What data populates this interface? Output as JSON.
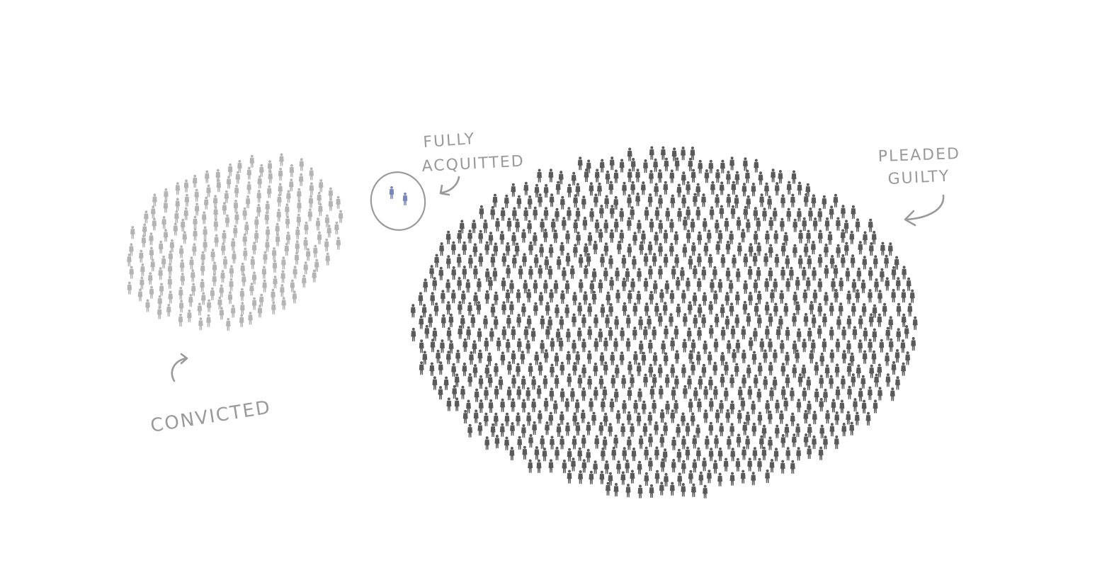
{
  "groups": {
    "convicted": {
      "label": "CONVICTED",
      "color": "#b4b4b4"
    },
    "fully_acquitted": {
      "label_line1": "FULLY",
      "label_line2": "ACQUITTED",
      "color": "#7b86b8"
    },
    "pleaded_guilty": {
      "label_line1": "PLEADED",
      "label_line2": "GUILTY",
      "color": "#5a5a5a"
    }
  },
  "annotation_color": "#9a9a9a",
  "icons": {
    "person": "person-icon",
    "arrow": "curved-arrow-icon"
  }
}
